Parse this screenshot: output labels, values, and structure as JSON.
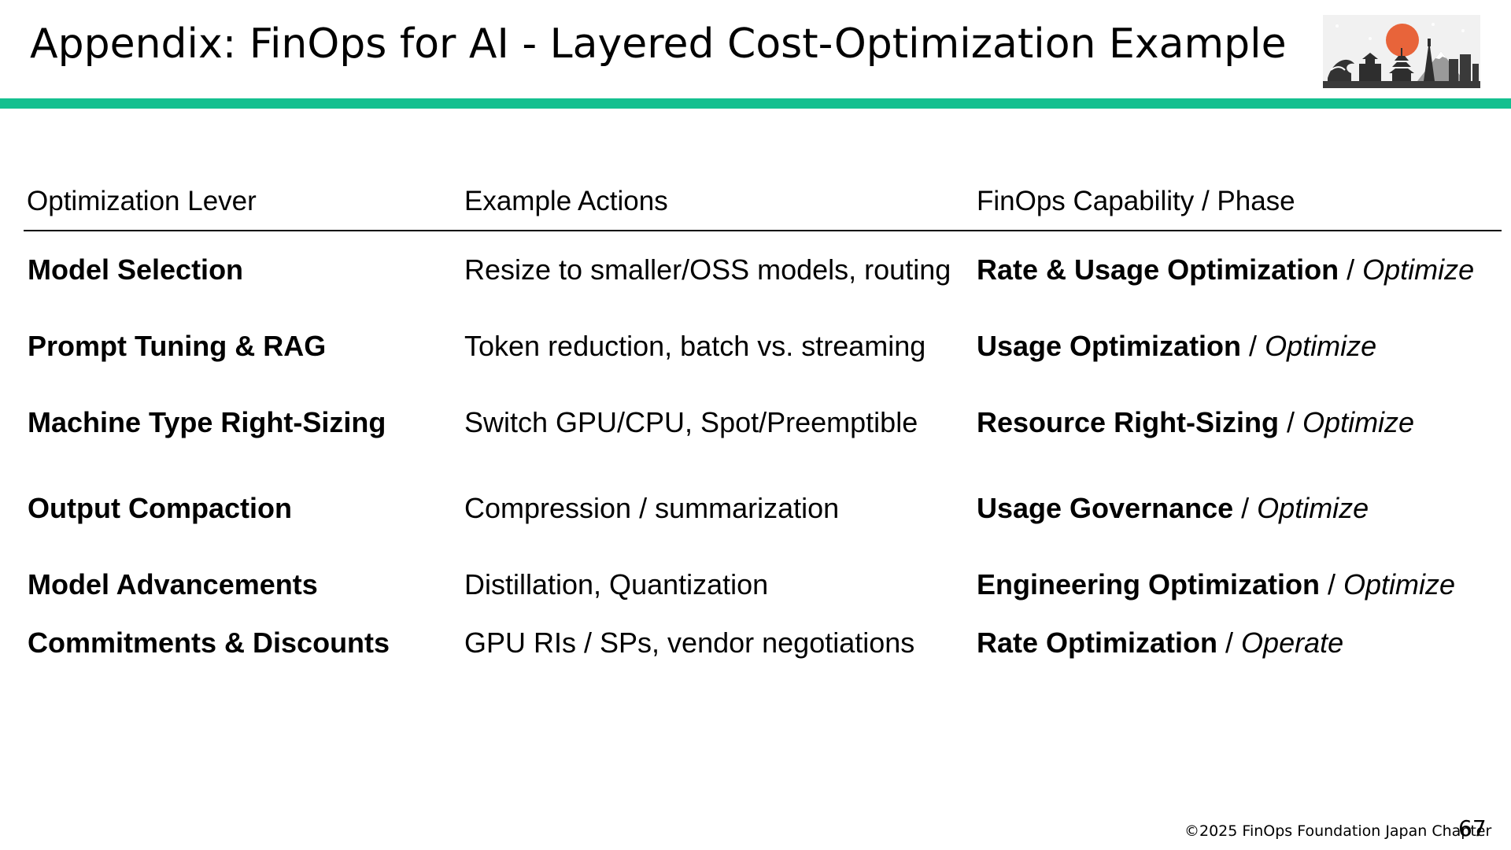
{
  "title": "Appendix: FinOps for AI - Layered Cost-Optimization Example",
  "colors": {
    "accent": "#14c08f",
    "sun": "#e8643a"
  },
  "logo_icon": "japan-skyline-sun-logo",
  "table": {
    "headers": [
      "Optimization Lever",
      "Example Actions",
      "FinOps Capability / Phase"
    ],
    "rows": [
      {
        "lever": "Model Selection",
        "action": "Resize to smaller/OSS models, routing",
        "capability": "Rate & Usage Optimization",
        "sep": " / ",
        "phase": "Optimize"
      },
      {
        "lever": "Prompt Tuning & RAG",
        "action": "Token reduction, batch vs. streaming",
        "capability": "Usage Optimization",
        "sep": " / ",
        "phase": "Optimize"
      },
      {
        "lever": "Machine Type Right-Sizing",
        "action": "Switch GPU/CPU, Spot/Preemptible",
        "capability": "Resource Right-Sizing",
        "sep": " / ",
        "phase": "Optimize"
      },
      {
        "lever": "Output Compaction",
        "action": "Compression / summarization",
        "capability": "Usage Governance",
        "sep": " / ",
        "phase": "Optimize"
      },
      {
        "lever": "Model Advancements",
        "action": "Distillation, Quantization",
        "capability": "Engineering Optimization",
        "sep": " / ",
        "phase": "Optimize"
      },
      {
        "lever": "Commitments & Discounts",
        "action": "GPU RIs / SPs, vendor negotiations",
        "capability": "Rate Optimization",
        "sep": " / ",
        "phase": "Operate"
      }
    ]
  },
  "footer": "©2025 FinOps Foundation Japan Chapter",
  "page_number": "67"
}
